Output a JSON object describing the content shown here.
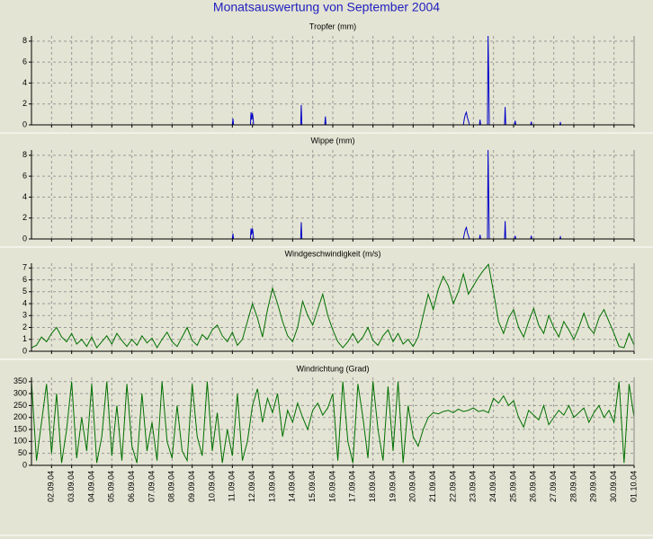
{
  "title": "Monatsauswertung von September 2004",
  "chart_data": [
    {
      "type": "line",
      "title": "Tropfer (mm)",
      "color": "#0000c8",
      "xlim": [
        0,
        30
      ],
      "ylim": [
        0,
        8.5
      ],
      "yticks": [
        0,
        2,
        4,
        6,
        8
      ],
      "grid": true,
      "x": [
        0,
        10.0,
        10.03,
        10.06,
        10.9,
        10.93,
        10.96,
        11.0,
        11.03,
        11.06,
        13.4,
        13.43,
        13.46,
        14.6,
        14.63,
        14.66,
        21.5,
        21.55,
        21.6,
        21.65,
        21.7,
        21.75,
        21.8,
        22.3,
        22.33,
        22.36,
        22.7,
        22.73,
        22.76,
        22.79,
        23.55,
        23.58,
        23.61,
        24.05,
        24.08,
        24.11,
        24.85,
        24.88,
        24.91,
        26.3,
        26.33,
        26.36,
        30
      ],
      "values": [
        0,
        0,
        0.6,
        0,
        0,
        1.2,
        0.5,
        1.1,
        0.7,
        0,
        0,
        1.9,
        0,
        0,
        0.8,
        0,
        0,
        0.6,
        1.0,
        1.2,
        0.7,
        0.4,
        0,
        0,
        0.5,
        0,
        0,
        8.5,
        5.0,
        0,
        0,
        1.7,
        0,
        0,
        0.4,
        0,
        0,
        0.3,
        0,
        0,
        0.2,
        0,
        0
      ]
    },
    {
      "type": "line",
      "title": "Wippe (mm)",
      "color": "#0000c8",
      "xlim": [
        0,
        30
      ],
      "ylim": [
        0,
        8.5
      ],
      "yticks": [
        0,
        2,
        4,
        6,
        8
      ],
      "grid": true,
      "x": [
        0,
        10.0,
        10.03,
        10.06,
        10.9,
        10.93,
        10.96,
        11.0,
        11.03,
        11.06,
        13.4,
        13.43,
        13.46,
        21.5,
        21.55,
        21.6,
        21.65,
        21.7,
        21.75,
        21.8,
        22.3,
        22.33,
        22.36,
        22.7,
        22.73,
        22.76,
        22.79,
        23.55,
        23.58,
        23.61,
        24.05,
        24.08,
        24.11,
        24.85,
        24.88,
        24.91,
        26.3,
        26.33,
        26.36,
        30
      ],
      "values": [
        0,
        0,
        0.5,
        0,
        0,
        1.0,
        0.4,
        1.0,
        0.6,
        0,
        0,
        1.6,
        0,
        0,
        0.5,
        0.9,
        1.1,
        0.6,
        0.3,
        0,
        0,
        0.4,
        0,
        0,
        8.5,
        4.5,
        0,
        0,
        1.7,
        0,
        0,
        0.3,
        0,
        0,
        0.3,
        0,
        0,
        0.2,
        0,
        0
      ]
    },
    {
      "type": "line",
      "title": "Windgeschwindigkeit (m/s)",
      "color": "#007000",
      "xlim": [
        0,
        30
      ],
      "ylim": [
        0,
        7.4
      ],
      "yticks": [
        0,
        1,
        2,
        3,
        4,
        5,
        6,
        7
      ],
      "grid": true,
      "x": [
        0,
        0.25,
        0.5,
        0.75,
        1,
        1.25,
        1.5,
        1.75,
        2,
        2.25,
        2.5,
        2.75,
        3,
        3.25,
        3.5,
        3.75,
        4,
        4.25,
        4.5,
        4.75,
        5,
        5.25,
        5.5,
        5.75,
        6,
        6.25,
        6.5,
        6.75,
        7,
        7.25,
        7.5,
        7.75,
        8,
        8.25,
        8.5,
        8.75,
        9,
        9.25,
        9.5,
        9.75,
        10,
        10.25,
        10.5,
        10.75,
        11,
        11.25,
        11.5,
        11.75,
        12,
        12.25,
        12.5,
        12.75,
        13,
        13.25,
        13.5,
        13.75,
        14,
        14.25,
        14.5,
        14.75,
        15,
        15.25,
        15.5,
        15.75,
        16,
        16.25,
        16.5,
        16.75,
        17,
        17.25,
        17.5,
        17.75,
        18,
        18.25,
        18.5,
        18.75,
        19,
        19.25,
        19.5,
        19.75,
        20,
        20.25,
        20.5,
        20.75,
        21,
        21.25,
        21.5,
        21.75,
        22,
        22.25,
        22.5,
        22.75,
        23,
        23.25,
        23.5,
        23.75,
        24,
        24.25,
        24.5,
        24.75,
        25,
        25.25,
        25.5,
        25.75,
        26,
        26.25,
        26.5,
        26.75,
        27,
        27.25,
        27.5,
        27.75,
        28,
        28.25,
        28.5,
        28.75,
        29,
        29.25,
        29.5,
        29.75,
        30
      ],
      "values": [
        0.3,
        0.5,
        1.2,
        0.8,
        1.5,
        2.0,
        1.2,
        0.8,
        1.5,
        0.6,
        1.0,
        0.4,
        1.2,
        0.3,
        0.8,
        1.3,
        0.6,
        1.5,
        0.9,
        0.4,
        1.0,
        0.5,
        1.3,
        0.7,
        1.1,
        0.3,
        1.0,
        1.6,
        0.8,
        0.4,
        1.2,
        2.0,
        0.9,
        0.5,
        1.4,
        1.0,
        1.8,
        2.2,
        1.3,
        0.8,
        1.6,
        0.5,
        1.0,
        2.5,
        4.0,
        2.8,
        1.2,
        3.5,
        5.3,
        4.0,
        2.5,
        1.3,
        0.8,
        2.0,
        4.2,
        3.0,
        2.2,
        3.5,
        4.8,
        3.0,
        1.8,
        0.8,
        0.3,
        0.8,
        1.5,
        0.7,
        1.2,
        2.0,
        0.9,
        0.5,
        1.3,
        1.8,
        0.8,
        1.5,
        0.6,
        1.0,
        0.4,
        1.2,
        3.0,
        4.8,
        3.5,
        5.2,
        6.3,
        5.5,
        4.0,
        5.0,
        6.5,
        4.8,
        5.5,
        6.2,
        6.8,
        7.3,
        5.0,
        2.5,
        1.5,
        2.8,
        3.5,
        2.0,
        1.2,
        2.5,
        3.6,
        2.2,
        1.5,
        3.0,
        2.0,
        1.2,
        2.5,
        1.8,
        1.0,
        2.0,
        3.2,
        2.0,
        1.5,
        2.8,
        3.5,
        2.5,
        1.5,
        0.4,
        0.3,
        1.5,
        0.5
      ]
    },
    {
      "type": "line",
      "title": "Windrichtung (Grad)",
      "color": "#007000",
      "xlim": [
        0,
        30
      ],
      "ylim": [
        0,
        368
      ],
      "yticks": [
        0,
        50,
        100,
        150,
        200,
        250,
        300,
        350
      ],
      "grid": true,
      "x": [
        0,
        0.25,
        0.5,
        0.75,
        1,
        1.25,
        1.5,
        1.75,
        2,
        2.25,
        2.5,
        2.75,
        3,
        3.25,
        3.5,
        3.75,
        4,
        4.25,
        4.5,
        4.75,
        5,
        5.25,
        5.5,
        5.75,
        6,
        6.25,
        6.5,
        6.75,
        7,
        7.25,
        7.5,
        7.75,
        8,
        8.25,
        8.5,
        8.75,
        9,
        9.25,
        9.5,
        9.75,
        10,
        10.25,
        10.5,
        10.75,
        11,
        11.25,
        11.5,
        11.75,
        12,
        12.25,
        12.5,
        12.75,
        13,
        13.25,
        13.5,
        13.75,
        14,
        14.25,
        14.5,
        14.75,
        15,
        15.25,
        15.5,
        15.75,
        16,
        16.25,
        16.5,
        16.75,
        17,
        17.25,
        17.5,
        17.75,
        18,
        18.25,
        18.5,
        18.75,
        19,
        19.25,
        19.5,
        19.75,
        20,
        20.25,
        20.5,
        20.75,
        21,
        21.25,
        21.5,
        21.75,
        22,
        22.25,
        22.5,
        22.75,
        23,
        23.25,
        23.5,
        23.75,
        24,
        24.25,
        24.5,
        24.75,
        25,
        25.25,
        25.5,
        25.75,
        26,
        26.25,
        26.5,
        26.75,
        27,
        27.25,
        27.5,
        27.75,
        28,
        28.25,
        28.5,
        28.75,
        29,
        29.25,
        29.5,
        29.75,
        30
      ],
      "values": [
        350,
        20,
        180,
        340,
        50,
        300,
        10,
        150,
        350,
        30,
        200,
        60,
        340,
        10,
        120,
        350,
        40,
        250,
        20,
        340,
        80,
        10,
        300,
        60,
        180,
        20,
        350,
        100,
        30,
        250,
        60,
        20,
        340,
        120,
        40,
        350,
        60,
        220,
        10,
        150,
        40,
        300,
        20,
        100,
        250,
        320,
        180,
        280,
        220,
        300,
        120,
        230,
        180,
        260,
        200,
        150,
        230,
        260,
        210,
        240,
        300,
        20,
        350,
        100,
        10,
        340,
        200,
        30,
        350,
        150,
        20,
        330,
        60,
        350,
        10,
        250,
        120,
        80,
        150,
        200,
        220,
        215,
        225,
        230,
        220,
        235,
        225,
        230,
        240,
        225,
        230,
        220,
        280,
        260,
        290,
        250,
        270,
        200,
        160,
        230,
        210,
        190,
        250,
        170,
        200,
        230,
        210,
        250,
        200,
        220,
        240,
        180,
        220,
        250,
        200,
        230,
        180,
        350,
        10,
        340,
        200
      ],
      "xticks": [
        {
          "value": 1,
          "label": "02.09.04"
        },
        {
          "value": 2,
          "label": "03.09.04"
        },
        {
          "value": 3,
          "label": "04.09.04"
        },
        {
          "value": 4,
          "label": "05.09.04"
        },
        {
          "value": 5,
          "label": "06.09.04"
        },
        {
          "value": 6,
          "label": "07.09.04"
        },
        {
          "value": 7,
          "label": "08.09.04"
        },
        {
          "value": 8,
          "label": "09.09.04"
        },
        {
          "value": 9,
          "label": "10.09.04"
        },
        {
          "value": 10,
          "label": "11.09.04"
        },
        {
          "value": 11,
          "label": "12.09.04"
        },
        {
          "value": 12,
          "label": "13.09.04"
        },
        {
          "value": 13,
          "label": "14.09.04"
        },
        {
          "value": 14,
          "label": "15.09.04"
        },
        {
          "value": 15,
          "label": "16.09.04"
        },
        {
          "value": 16,
          "label": "17.09.04"
        },
        {
          "value": 17,
          "label": "18.09.04"
        },
        {
          "value": 18,
          "label": "19.09.04"
        },
        {
          "value": 19,
          "label": "20.09.04"
        },
        {
          "value": 20,
          "label": "21.09.04"
        },
        {
          "value": 21,
          "label": "22.09.04"
        },
        {
          "value": 22,
          "label": "23.09.04"
        },
        {
          "value": 23,
          "label": "24.09.04"
        },
        {
          "value": 24,
          "label": "25.09.04"
        },
        {
          "value": 25,
          "label": "26.09.04"
        },
        {
          "value": 26,
          "label": "27.09.04"
        },
        {
          "value": 27,
          "label": "28.09.04"
        },
        {
          "value": 28,
          "label": "29.09.04"
        },
        {
          "value": 29,
          "label": "30.09.04"
        },
        {
          "value": 30,
          "label": "01.10.04"
        }
      ]
    }
  ]
}
